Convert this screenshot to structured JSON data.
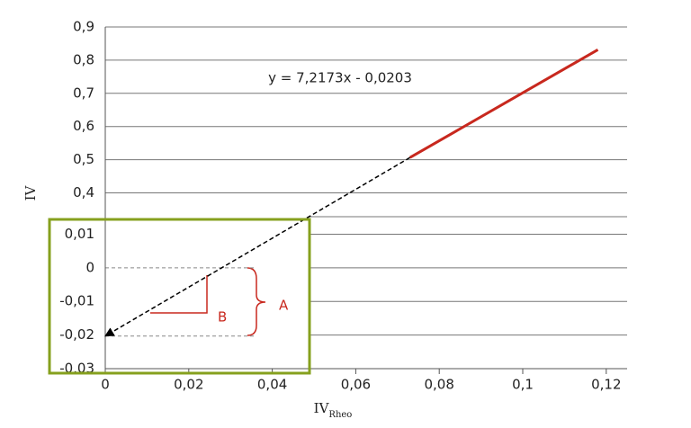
{
  "chart_data": {
    "type": "line",
    "equation": "y = 7,2173x - 0,0203",
    "y_label": "IV",
    "x_label": {
      "text": "IV",
      "subscript": "Rheo"
    },
    "xlim": [
      0,
      0.125
    ],
    "xticks": [
      0,
      {
        "value": 0.02,
        "label": "0,02"
      },
      {
        "value": 0.04,
        "label": "0,04"
      },
      {
        "value": 0.06,
        "label": "0,06"
      },
      {
        "value": 0.08,
        "label": "0,08"
      },
      {
        "value": 0.1,
        "label": "0,1"
      },
      {
        "value": 0.12,
        "label": "0,12"
      }
    ],
    "ylim": [
      0.32,
      0.9
    ],
    "yticks": [
      {
        "value": 0.4,
        "label": "0,4"
      },
      {
        "value": 0.5,
        "label": "0,5"
      },
      {
        "value": 0.6,
        "label": "0,6"
      },
      {
        "value": 0.7,
        "label": "0,7"
      },
      {
        "value": 0.8,
        "label": "0,8"
      },
      {
        "value": 0.9,
        "label": "0,9"
      }
    ],
    "ylim_lower": [
      -0.03,
      0.0144
    ],
    "yticks_lower": [
      {
        "value": -0.03,
        "label": "-0,03"
      },
      {
        "value": -0.02,
        "label": "-0,02"
      },
      {
        "value": -0.01,
        "label": "-0,01"
      },
      0,
      {
        "value": 0.01,
        "label": "0,01"
      }
    ],
    "grid": true,
    "series": [
      {
        "color": "#000000",
        "dashed": true,
        "x": [
          0,
          0.073
        ],
        "values": [
          -0.0203,
          0.5066
        ]
      },
      {
        "color": "#c8281e",
        "dashed": false,
        "x": [
          0.073,
          0.118
        ],
        "values": [
          0.5066,
          0.8314
        ]
      }
    ],
    "annotations": {
      "A": "A",
      "B": "B"
    },
    "highlight_color": "#86a01e"
  }
}
